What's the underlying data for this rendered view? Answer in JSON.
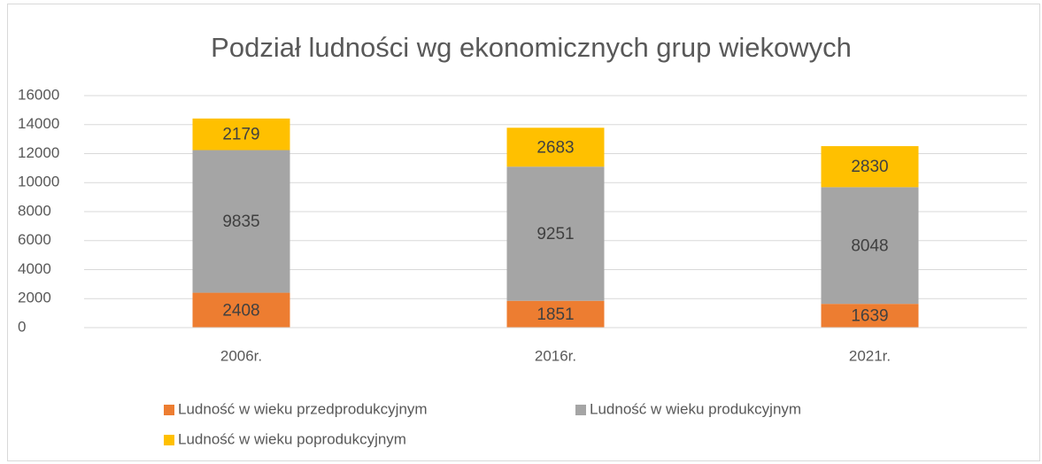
{
  "chart_data": {
    "type": "stacked_bar",
    "title": "Podział ludności wg ekonomicznych grup wiekowych",
    "categories": [
      "2006r.",
      "2016r.",
      "2021r."
    ],
    "series": [
      {
        "name": "Ludność w wieku przedprodukcyjnym",
        "color": "#ed7d31",
        "values": [
          2408,
          1851,
          1639
        ]
      },
      {
        "name": "Ludność w wieku produkcyjnym",
        "color": "#a5a5a5",
        "values": [
          9835,
          9251,
          8048
        ]
      },
      {
        "name": "Ludność w wieku poprodukcyjnym",
        "color": "#ffc000",
        "values": [
          2179,
          2683,
          2830
        ]
      }
    ],
    "ylim": [
      0,
      16000
    ],
    "yticks": [
      0,
      2000,
      4000,
      6000,
      8000,
      10000,
      12000,
      14000,
      16000
    ],
    "grid": true,
    "legend": "bottom"
  }
}
